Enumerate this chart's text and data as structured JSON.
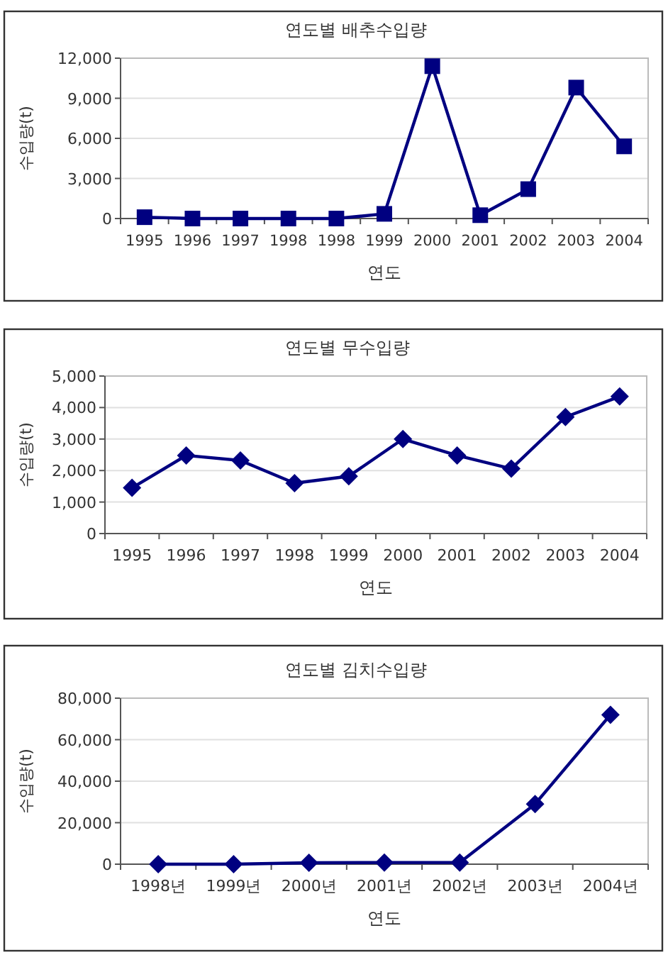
{
  "chart_data": [
    {
      "type": "line",
      "title": "연도별 배추수입량",
      "xlabel": "연도",
      "ylabel": "수입량(t)",
      "categories": [
        "1995",
        "1996",
        "1997",
        "1998",
        "1998",
        "1999",
        "2000",
        "2001",
        "2002",
        "2003",
        "2004"
      ],
      "values": [
        100,
        0,
        0,
        0,
        0,
        350,
        11400,
        250,
        2200,
        9800,
        5400
      ],
      "color": "#000080",
      "ylim": [
        0,
        12000
      ],
      "yticks": [
        {
          "value": 0,
          "label": "0"
        },
        {
          "value": 3000,
          "label": "3,000"
        },
        {
          "value": 6000,
          "label": "6,000"
        },
        {
          "value": 9000,
          "label": "9,000"
        },
        {
          "value": 12000,
          "label": "12,000"
        }
      ],
      "grid": "y",
      "marker": "square",
      "line_style": "solid"
    },
    {
      "type": "line",
      "title": "연도별 무수입량",
      "xlabel": "연도",
      "ylabel": "수입량(t)",
      "categories": [
        "1995",
        "1996",
        "1997",
        "1998",
        "1999",
        "2000",
        "2001",
        "2002",
        "2003",
        "2004"
      ],
      "values": [
        1450,
        2480,
        2320,
        1600,
        1820,
        3000,
        2480,
        2060,
        3700,
        4350
      ],
      "color": "#000080",
      "ylim": [
        0,
        5000
      ],
      "yticks": [
        {
          "value": 0,
          "label": "0"
        },
        {
          "value": 1000,
          "label": "1,000"
        },
        {
          "value": 2000,
          "label": "2,000"
        },
        {
          "value": 3000,
          "label": "3,000"
        },
        {
          "value": 4000,
          "label": "4,000"
        },
        {
          "value": 5000,
          "label": "5,000"
        }
      ],
      "grid": "y",
      "marker": "diamond",
      "line_style": "solid"
    },
    {
      "type": "line",
      "title": "연도별 김치수입량",
      "xlabel": "연도",
      "ylabel": "수입량(t)",
      "categories": [
        "1998년",
        "1999년",
        "2000년",
        "2001년",
        "2002년",
        "2003년",
        "2004년"
      ],
      "values": [
        0,
        0,
        700,
        800,
        800,
        29000,
        72000
      ],
      "color": "#000080",
      "ylim": [
        0,
        80000
      ],
      "yticks": [
        {
          "value": 0,
          "label": "0"
        },
        {
          "value": 20000,
          "label": "20,000"
        },
        {
          "value": 40000,
          "label": "40,000"
        },
        {
          "value": 60000,
          "label": "60,000"
        },
        {
          "value": 80000,
          "label": "80,000"
        }
      ],
      "grid": "y",
      "marker": "diamond",
      "line_style": "solid"
    }
  ]
}
